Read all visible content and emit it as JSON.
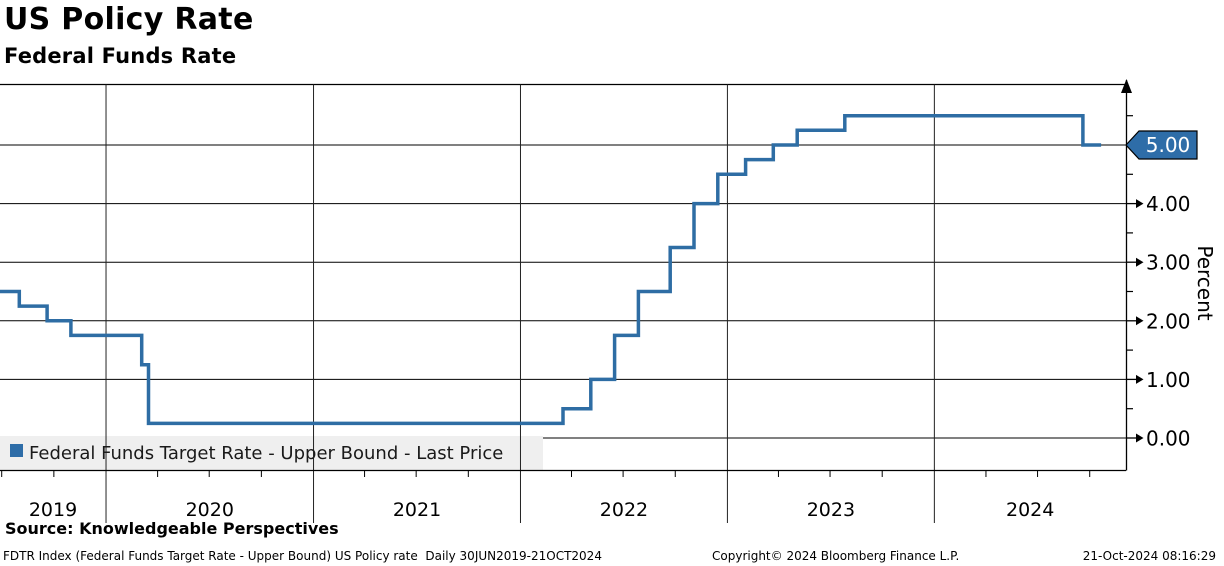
{
  "header": {
    "title": "US Policy Rate",
    "subtitle": "Federal Funds Rate"
  },
  "chart_data": {
    "type": "step-line",
    "title": "US Policy Rate",
    "subtitle": "Federal Funds Rate",
    "legend": {
      "label": "Federal Funds Target Rate - Upper Bound - Last Price",
      "marker_color": "#2e6da8",
      "bg": "#efefef"
    },
    "series": [
      {
        "name": "Federal Funds Target Rate - Upper Bound",
        "color": "#2e6da4",
        "points": [
          {
            "date": "2019-06-28",
            "value": 2.5
          },
          {
            "date": "2019-08-01",
            "value": 2.25
          },
          {
            "date": "2019-09-19",
            "value": 2.0
          },
          {
            "date": "2019-10-31",
            "value": 1.75
          },
          {
            "date": "2020-03-04",
            "value": 1.25
          },
          {
            "date": "2020-03-16",
            "value": 0.25
          },
          {
            "date": "2022-03-17",
            "value": 0.5
          },
          {
            "date": "2022-05-05",
            "value": 1.0
          },
          {
            "date": "2022-06-16",
            "value": 1.75
          },
          {
            "date": "2022-07-28",
            "value": 2.5
          },
          {
            "date": "2022-09-22",
            "value": 3.25
          },
          {
            "date": "2022-11-03",
            "value": 4.0
          },
          {
            "date": "2022-12-15",
            "value": 4.5
          },
          {
            "date": "2023-02-02",
            "value": 4.75
          },
          {
            "date": "2023-03-23",
            "value": 5.0
          },
          {
            "date": "2023-05-04",
            "value": 5.25
          },
          {
            "date": "2023-07-27",
            "value": 5.5
          },
          {
            "date": "2024-09-19",
            "value": 5.0
          },
          {
            "date": "2024-10-21",
            "value": 5.0
          }
        ]
      }
    ],
    "x_axis": {
      "domain_start": "2019-06-28",
      "domain_end": "2024-12-04",
      "year_boundaries": [
        "2020-01-01",
        "2021-01-01",
        "2022-01-01",
        "2023-01-01",
        "2024-01-01"
      ],
      "labels": [
        "2019",
        "2020",
        "2021",
        "2022",
        "2023",
        "2024"
      ],
      "minor_tick_interval": "quarter",
      "grid": true
    },
    "y_axis": {
      "title": "Percent",
      "min": 0,
      "max": 6.05,
      "major_ticks": [
        {
          "v": 0,
          "label": "0.00"
        },
        {
          "v": 1,
          "label": "1.00"
        },
        {
          "v": 2,
          "label": "2.00"
        },
        {
          "v": 3,
          "label": "3.00"
        },
        {
          "v": 4,
          "label": "4.00"
        },
        {
          "v": 5,
          "label": "5.00",
          "covered_by_price_tag": true
        }
      ],
      "minor_ticks": [
        0.5,
        1.5,
        2.5,
        3.5,
        4.5,
        5.5
      ],
      "grid": true,
      "side": "right"
    },
    "last_price": {
      "value": 5.0,
      "label": "5.00",
      "bg_color": "#2e6da8",
      "text_color": "#ffffff"
    }
  },
  "footer": {
    "source": "Source: Knowledgeable Perspectives",
    "description": "FDTR Index (Federal Funds Target Rate - Upper Bound) US Policy rate  Daily 30JUN2019-21OCT2024",
    "copyright": "Copyright© 2024 Bloomberg Finance L.P.",
    "timestamp": "21-Oct-2024 08:16:29"
  }
}
